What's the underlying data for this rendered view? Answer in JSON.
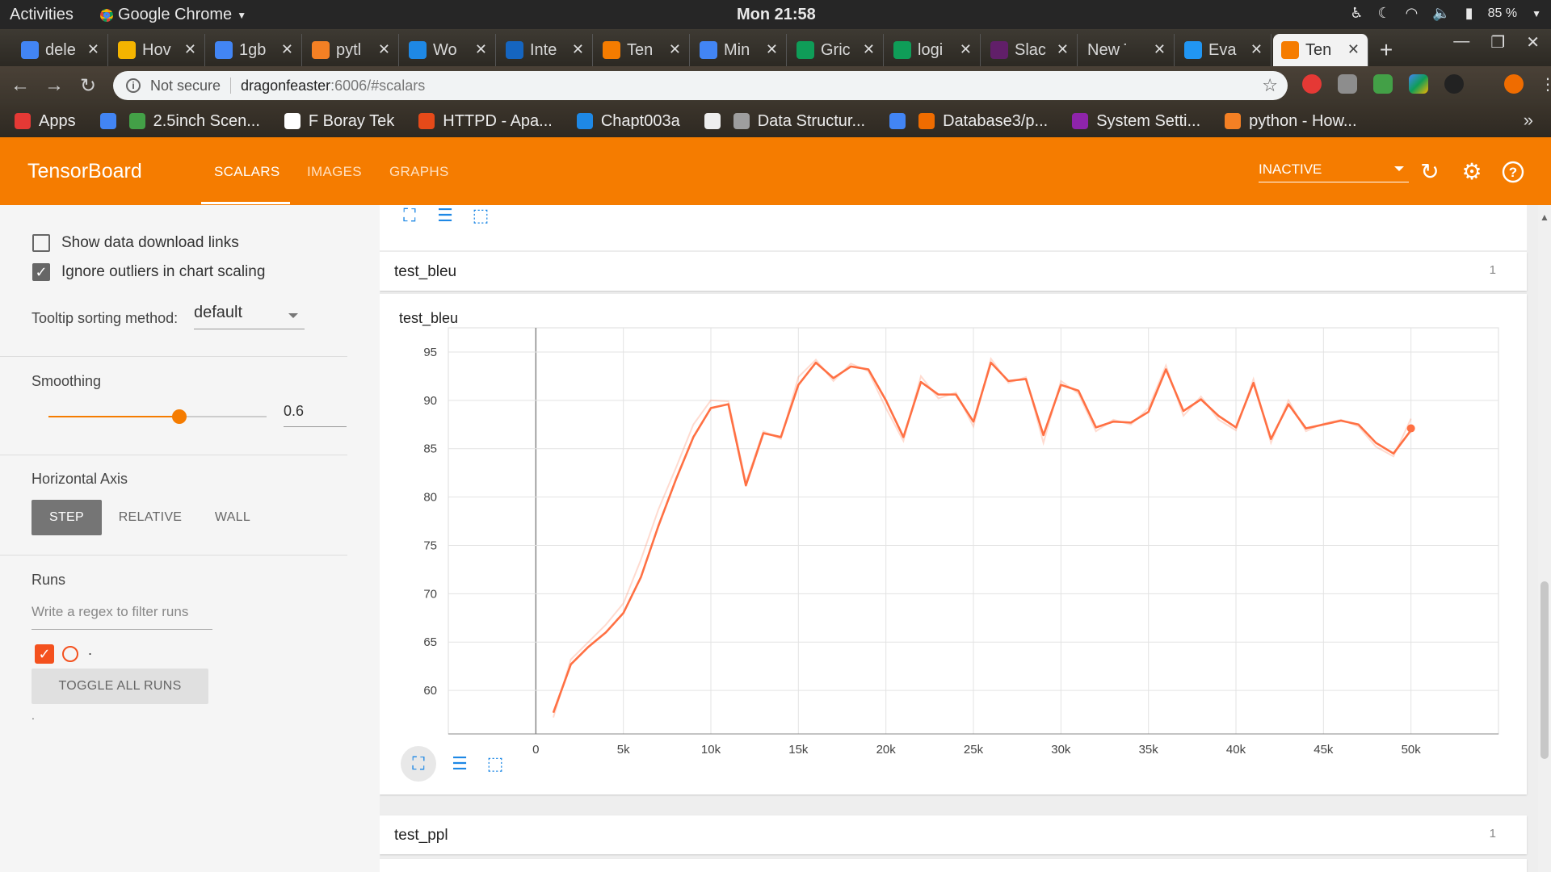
{
  "topbar": {
    "activities": "Activities",
    "app_name": "Google Chrome",
    "clock": "Mon 21:58",
    "battery": "85 %"
  },
  "tabs": [
    {
      "label": "dele",
      "icon": "google-icon",
      "color": "#4285f4"
    },
    {
      "label": "Hov",
      "icon": "drive-icon",
      "color": "#f4b400"
    },
    {
      "label": "1gb",
      "icon": "google-icon",
      "color": "#4285f4"
    },
    {
      "label": "pytl",
      "icon": "stackoverflow-icon",
      "color": "#f48024"
    },
    {
      "label": "Wo",
      "icon": "blue-logo-icon",
      "color": "#1e88e5"
    },
    {
      "label": "Inte",
      "icon": "k-icon",
      "color": "#1565c0"
    },
    {
      "label": "Ten",
      "icon": "tensorboard-icon",
      "color": "#f57c00"
    },
    {
      "label": "Min",
      "icon": "docs-icon",
      "color": "#4285f4"
    },
    {
      "label": "Gric",
      "icon": "sheets-icon",
      "color": "#0f9d58"
    },
    {
      "label": "logi",
      "icon": "drive-icon",
      "color": "#0f9d58"
    },
    {
      "label": "Slac",
      "icon": "slack-icon",
      "color": "#611f69"
    },
    {
      "label": "New T",
      "icon": "",
      "color": "#3e3a33"
    },
    {
      "label": "Eva",
      "icon": "code-icon",
      "color": "#2196f3"
    },
    {
      "label": "Ten",
      "icon": "tensorboard-icon",
      "color": "#f57c00",
      "active": true
    }
  ],
  "omnibox": {
    "security": "Not secure",
    "host": "dragonfeaster",
    "path": ":6006/#scalars"
  },
  "bookmarks": [
    {
      "label": "Apps",
      "color": "#e53935"
    },
    {
      "label": "",
      "color": "#4285f4"
    },
    {
      "label": "2.5inch Scen...",
      "color": "#43a047"
    },
    {
      "label": "F Boray Tek",
      "color": "#ffffff"
    },
    {
      "label": "HTTPD - Apa...",
      "color": "#e64a19"
    },
    {
      "label": "Chapt003a",
      "color": "#1e88e5"
    },
    {
      "label": "",
      "color": "#eeeeee"
    },
    {
      "label": "Data Structur...",
      "color": "#9e9e9e"
    },
    {
      "label": "",
      "color": "#4285f4"
    },
    {
      "label": "Database3/p...",
      "color": "#ef6c00"
    },
    {
      "label": "System Setti...",
      "color": "#8e24aa"
    },
    {
      "label": "python - How...",
      "color": "#f48024"
    }
  ],
  "tensorboard": {
    "brand": "TensorBoard",
    "nav": [
      "SCALARS",
      "IMAGES",
      "GRAPHS"
    ],
    "run_state": "INACTIVE"
  },
  "sidebar": {
    "show_download_links": "Show data download links",
    "ignore_outliers": "Ignore outliers in chart scaling",
    "tooltip_label": "Tooltip sorting method:",
    "tooltip_value": "default",
    "smoothing_label": "Smoothing",
    "smoothing_value": "0.6",
    "smoothing_level": 0.6,
    "horizontal_axis_label": "Horizontal Axis",
    "axis_options": [
      "STEP",
      "RELATIVE",
      "WALL"
    ],
    "runs_label": "Runs",
    "regex_placeholder": "Write a regex to filter runs",
    "run_name": ".",
    "toggle_all": "TOGGLE ALL RUNS",
    "footer_dot": "."
  },
  "main": {
    "group1": {
      "title": "test_bleu",
      "count": "1"
    },
    "group2": {
      "title": "test_ppl",
      "count": "1"
    }
  },
  "chart_data": {
    "type": "line",
    "title": "test_bleu",
    "xlim": [
      -5000,
      55000
    ],
    "ylim": [
      55.5,
      97.5
    ],
    "x_ticks": [
      0,
      5000,
      10000,
      15000,
      20000,
      25000,
      30000,
      35000,
      40000,
      45000,
      50000
    ],
    "x_tick_labels": [
      "0",
      "5k",
      "10k",
      "15k",
      "20k",
      "25k",
      "30k",
      "35k",
      "40k",
      "45k",
      "50k"
    ],
    "y_ticks": [
      60,
      65,
      70,
      75,
      80,
      85,
      90,
      95
    ],
    "grid": true,
    "series": [
      {
        "color": "#ff7043",
        "x": [
          1000,
          2000,
          3000,
          4000,
          5000,
          6000,
          7000,
          8000,
          9000,
          10000,
          11000,
          12000,
          13000,
          14000,
          15000,
          16000,
          17000,
          18000,
          19000,
          20000,
          21000,
          22000,
          23000,
          24000,
          25000,
          26000,
          27000,
          28000,
          29000,
          30000,
          31000,
          32000,
          33000,
          34000,
          35000,
          36000,
          37000,
          38000,
          39000,
          40000,
          41000,
          42000,
          43000,
          44000,
          45000,
          46000,
          47000,
          48000,
          49000,
          50000
        ],
        "smoothed": [
          57.7,
          62.7,
          64.5,
          66.0,
          68.0,
          71.7,
          77.0,
          81.8,
          86.2,
          89.2,
          89.6,
          81.2,
          86.6,
          86.2,
          91.6,
          93.9,
          92.3,
          93.5,
          93.2,
          90.0,
          86.2,
          91.9,
          90.6,
          90.6,
          87.8,
          93.9,
          92.0,
          92.2,
          86.4,
          91.6,
          91.0,
          87.2,
          87.8,
          87.7,
          88.8,
          93.2,
          88.9,
          90.1,
          88.4,
          87.2,
          91.8,
          86.0,
          89.6,
          87.1,
          87.5,
          87.9,
          87.5,
          85.6,
          84.5,
          86.9
        ],
        "raw": [
          57.2,
          63.2,
          65.0,
          66.8,
          69.0,
          73.5,
          78.7,
          83.0,
          87.5,
          90.0,
          89.9,
          81.5,
          86.8,
          86.0,
          92.4,
          94.2,
          92.0,
          93.8,
          93.0,
          89.2,
          85.8,
          92.5,
          90.2,
          90.8,
          87.3,
          94.3,
          91.8,
          92.4,
          85.6,
          92.0,
          90.7,
          86.8,
          88.0,
          87.5,
          89.2,
          93.6,
          88.4,
          90.4,
          88.0,
          86.9,
          92.2,
          85.6,
          90.0,
          86.8,
          87.6,
          88.0,
          87.3,
          85.2,
          84.2,
          88.1
        ]
      }
    ],
    "highlight_point": {
      "x": 50000,
      "y": 87.1
    }
  }
}
